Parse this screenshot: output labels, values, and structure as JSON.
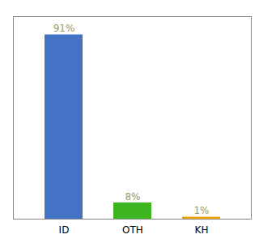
{
  "chart_data": {
    "type": "bar",
    "categories": [
      "ID",
      "OTH",
      "KH"
    ],
    "values": [
      91,
      8,
      1
    ],
    "colors": [
      "#4472c4",
      "#3cb520",
      "#f0a500"
    ],
    "value_labels": [
      "91%",
      "8%",
      "1%"
    ],
    "data_labels": true,
    "ylim": [
      0,
      100
    ],
    "yticks": [],
    "tick_labels": "x",
    "grid": false
  }
}
